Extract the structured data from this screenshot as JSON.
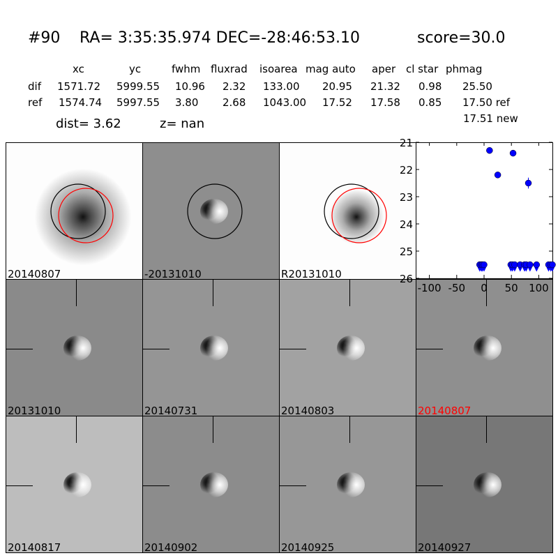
{
  "header": {
    "id": "#90",
    "coords": "RA= 3:35:35.974 DEC=-28:46:53.10",
    "score": "score=30.0"
  },
  "table": {
    "columns": [
      "xc",
      "yc",
      "fwhm",
      "fluxrad",
      "isoarea",
      "mag auto",
      "aper",
      "cl star",
      "phmag"
    ],
    "rows": [
      {
        "label": "dif",
        "values": [
          "1571.72",
          "5999.55",
          "10.96",
          "2.32",
          "133.00",
          "20.95",
          "21.32",
          "0.98",
          "25.50"
        ]
      },
      {
        "label": "ref",
        "values": [
          "1574.74",
          "5997.55",
          "3.80",
          "2.68",
          "1043.00",
          "17.52",
          "17.58",
          "0.85",
          "17.50 ref"
        ]
      }
    ],
    "extra": "17.51 new",
    "dist": "dist=  3.62",
    "z": "z=   nan"
  },
  "stamps": [
    {
      "label": "20140807",
      "bg": "#fdfdfd",
      "kind": "new",
      "circles": true
    },
    {
      "label": "-20131010",
      "bg": "#8e8e8e",
      "kind": "diff",
      "circles": true
    },
    {
      "label": "R20131010",
      "bg": "#fdfdfd",
      "kind": "ref",
      "circles": true
    },
    {
      "label": "20131010",
      "bg": "#8a8a8a",
      "kind": "diff"
    },
    {
      "label": "20140731",
      "bg": "#959595",
      "kind": "diff"
    },
    {
      "label": "20140803",
      "bg": "#a2a2a2",
      "kind": "diff"
    },
    {
      "label": "20140807",
      "bg": "#8f8f8f",
      "kind": "diff",
      "color": "#ff0000"
    },
    {
      "label": "20140817",
      "bg": "#bdbdbd",
      "kind": "diff"
    },
    {
      "label": "20140902",
      "bg": "#8c8c8c",
      "kind": "diff"
    },
    {
      "label": "20140925",
      "bg": "#979797",
      "kind": "diff"
    },
    {
      "label": "20140927",
      "bg": "#777777",
      "kind": "diff"
    }
  ],
  "chart_data": {
    "type": "scatter",
    "xlim": [
      -125,
      125
    ],
    "ylim": [
      26,
      21
    ],
    "xticks": [
      "-100",
      "-50",
      "0",
      "50",
      "100"
    ],
    "xtick_values": [
      -100,
      -50,
      0,
      50,
      100
    ],
    "yticks": [
      "21",
      "22",
      "23",
      "24",
      "25",
      "26"
    ],
    "ytick_values": [
      21,
      22,
      23,
      24,
      25,
      26
    ],
    "detections": [
      {
        "x": 10,
        "y": 21.3,
        "err": 0.05
      },
      {
        "x": 53,
        "y": 21.4,
        "err": 0.05
      },
      {
        "x": 25,
        "y": 22.2,
        "err": 0.1
      },
      {
        "x": 81,
        "y": 22.5,
        "err": 0.2
      }
    ],
    "upper_limits": {
      "y": 25.5,
      "x": [
        -8,
        -5,
        -3,
        0,
        49,
        52,
        56,
        66,
        74,
        77,
        84,
        96,
        118,
        122,
        125
      ]
    },
    "color": "#0000ff"
  }
}
